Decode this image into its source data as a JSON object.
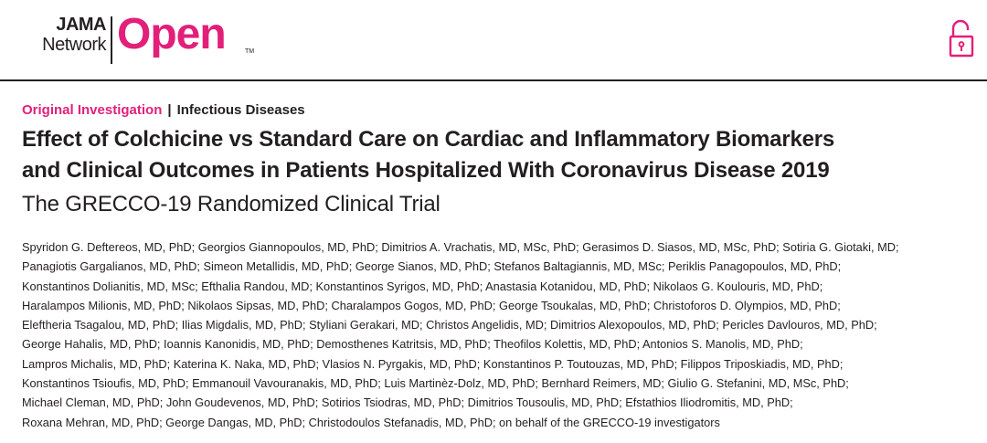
{
  "logo": {
    "line1": "JAMA",
    "line2": "Network",
    "open": "Open",
    "tm": "TM",
    "color": "#e2207a"
  },
  "lock_icon": "open-lock-icon",
  "article": {
    "type": "Original Investigation",
    "separator": "|",
    "topic": "Infectious Diseases",
    "title_lines": [
      "Effect of Colchicine vs Standard Care on Cardiac and Inflammatory Biomarkers",
      "and Clinical Outcomes in Patients Hospitalized With Coronavirus Disease 2019"
    ],
    "subtitle": "The GRECCO-19 Randomized Clinical Trial",
    "author_lines": [
      "Spyridon G. Deftereos, MD, PhD; Georgios Giannopoulos, MD, PhD; Dimitrios A. Vrachatis, MD, MSc, PhD; Gerasimos D. Siasos, MD, MSc, PhD; Sotiria G. Giotaki, MD;",
      "Panagiotis Gargalianos, MD, PhD; Simeon Metallidis, MD, PhD; George Sianos, MD, PhD; Stefanos Baltagiannis, MD, MSc; Periklis Panagopoulos, MD, PhD;",
      "Konstantinos Dolianitis, MD, MSc; Efthalia Randou, MD; Konstantinos Syrigos, MD, PhD; Anastasia Kotanidou, MD, PhD; Nikolaos G. Koulouris, MD, PhD;",
      "Haralampos Milionis, MD, PhD; Nikolaos Sipsas, MD, PhD; Charalampos Gogos, MD, PhD; George Tsoukalas, MD, PhD; Christoforos D. Olympios, MD, PhD;",
      "Eleftheria Tsagalou, MD, PhD; Ilias Migdalis, MD, PhD; Styliani Gerakari, MD; Christos Angelidis, MD; Dimitrios Alexopoulos, MD, PhD; Pericles Davlouros, MD, PhD;",
      "George Hahalis, MD, PhD; Ioannis Kanonidis, MD, PhD; Demosthenes Katritsis, MD, PhD; Theofilos Kolettis, MD, PhD; Antonios S. Manolis, MD, PhD;",
      "Lampros Michalis, MD, PhD; Katerina K. Naka, MD, PhD; Vlasios N. Pyrgakis, MD, PhD; Konstantinos P. Toutouzas, MD, PhD; Filippos Triposkiadis, MD, PhD;",
      "Konstantinos Tsioufis, MD, PhD; Emmanouil Vavouranakis, MD, PhD; Luis Martinèz-Dolz, MD, PhD; Bernhard Reimers, MD; Giulio G. Stefanini, MD, MSc, PhD;",
      "Michael Cleman, MD, PhD; John Goudevenos, MD, PhD; Sotirios Tsiodras, MD, PhD; Dimitrios Tousoulis, MD, PhD; Efstathios Iliodromitis, MD, PhD;",
      "Roxana Mehran, MD, PhD; George Dangas, MD, PhD; Christodoulos Stefanadis, MD, PhD; on behalf of the GRECCO-19 investigators"
    ]
  }
}
